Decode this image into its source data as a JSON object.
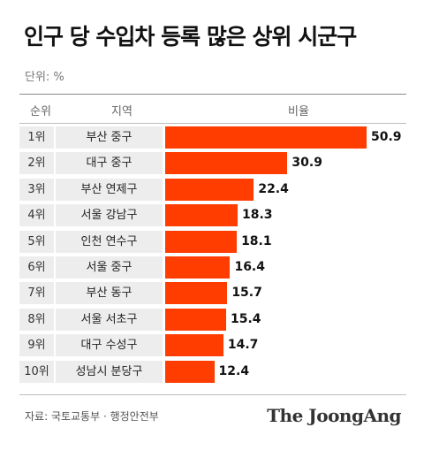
{
  "title": "인구 당 수입차 등록 많은 상위 시군구",
  "unit_label": "단위: %",
  "headers": {
    "rank": "순위",
    "region": "지역",
    "ratio": "비율"
  },
  "source": "자료: 국토교통부 · 행정안전부",
  "logo": "The JoongAng",
  "colors": {
    "bar": "#ff3d00",
    "cell_bg": "#ededed"
  },
  "chart_data": {
    "type": "bar",
    "orientation": "horizontal",
    "unit": "%",
    "categories": [
      "부산 중구",
      "대구 중구",
      "부산 연제구",
      "서울 강남구",
      "인천 연수구",
      "서울 중구",
      "부산 동구",
      "서울 서초구",
      "대구 수성구",
      "성남시 분당구"
    ],
    "ranks": [
      "1위",
      "2위",
      "3위",
      "4위",
      "5위",
      "6위",
      "7위",
      "8위",
      "9위",
      "10위"
    ],
    "values": [
      50.9,
      30.9,
      22.4,
      18.3,
      18.1,
      16.4,
      15.7,
      15.4,
      14.7,
      12.4
    ],
    "xlim": [
      0,
      50.9
    ],
    "grid": false,
    "legend": "none"
  }
}
